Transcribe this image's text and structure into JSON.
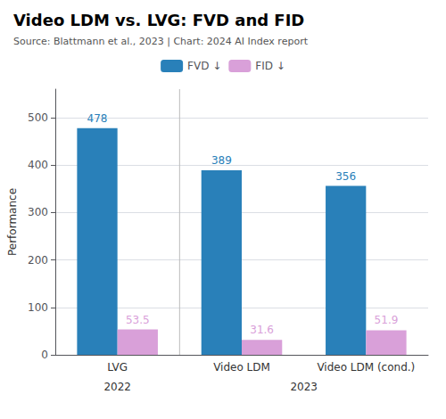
{
  "chart_data": {
    "type": "bar",
    "title": "Video LDM vs. LVG: FVD and FID",
    "subtitle": "Source: Blattmann et al., 2023 | Chart: 2024 AI Index report",
    "categories": [
      "LVG",
      "Video LDM",
      "Video LDM (cond.)"
    ],
    "series": [
      {
        "name": "FVD ↓",
        "color": "#2980b9",
        "values": [
          478,
          389,
          356
        ]
      },
      {
        "name": "FID ↓",
        "color": "#d9a0d9",
        "values": [
          53.5,
          31.6,
          51.9
        ]
      }
    ],
    "ylabel": "Performance",
    "ylim": [
      0,
      560
    ],
    "yticks": [
      0,
      100,
      200,
      300,
      400,
      500
    ],
    "grid": true,
    "legend": "top",
    "data_labels": true,
    "annotations": [
      {
        "text": "2022",
        "categories": [
          "LVG"
        ]
      },
      {
        "text": "2023",
        "categories": [
          "Video LDM",
          "Video LDM (cond.)"
        ]
      }
    ]
  }
}
